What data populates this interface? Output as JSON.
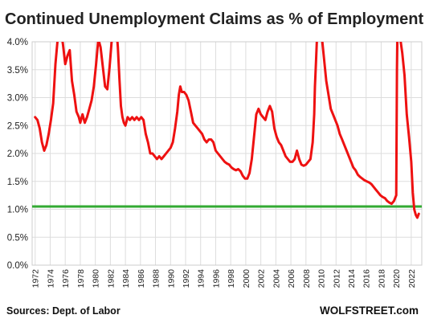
{
  "chart_data": {
    "type": "line",
    "title": "Continued Unemployment Claims as % of Employment",
    "xlabel": "",
    "ylabel": "",
    "xlim": [
      1971.6,
      2023.4
    ],
    "ylim": [
      0,
      4
    ],
    "y_ticks": [
      "0.0%",
      "0.5%",
      "1.0%",
      "1.5%",
      "2.0%",
      "2.5%",
      "3.0%",
      "3.5%",
      "4.0%"
    ],
    "y_tick_values": [
      0,
      0.5,
      1,
      1.5,
      2,
      2.5,
      3,
      3.5,
      4
    ],
    "x_ticks": [
      "1972",
      "1974",
      "1976",
      "1978",
      "1980",
      "1982",
      "1984",
      "1986",
      "1988",
      "1990",
      "1992",
      "1994",
      "1996",
      "1998",
      "2000",
      "2002",
      "2004",
      "2006",
      "2008",
      "2010",
      "2012",
      "2014",
      "2016",
      "2018",
      "2020",
      "2022"
    ],
    "x_tick_values": [
      1972,
      1974,
      1976,
      1978,
      1980,
      1982,
      1984,
      1986,
      1988,
      1990,
      1992,
      1994,
      1996,
      1998,
      2000,
      2002,
      2004,
      2006,
      2008,
      2010,
      2012,
      2014,
      2016,
      2018,
      2020,
      2022
    ],
    "grid": true,
    "colors": {
      "series": "#ee1111",
      "reference": "#33aa33",
      "grid": "#dddddd"
    },
    "series": [
      {
        "x": [
          1972.0,
          1972.3,
          1972.6,
          1972.9,
          1973.2,
          1973.5,
          1973.8,
          1974.1,
          1974.4,
          1974.7,
          1975.0,
          1975.2,
          1975.45,
          1975.7,
          1976.0,
          1976.3,
          1976.6,
          1976.9,
          1977.2,
          1977.5,
          1977.8,
          1978.0,
          1978.3,
          1978.6,
          1978.9,
          1979.2,
          1979.5,
          1979.8,
          1980.1,
          1980.4,
          1980.7,
          1981.0,
          1981.3,
          1981.6,
          1981.9,
          1982.2,
          1982.5,
          1982.8,
          1983.0,
          1983.2,
          1983.4,
          1983.6,
          1983.8,
          1984.0,
          1984.3,
          1984.6,
          1984.9,
          1985.2,
          1985.5,
          1985.8,
          1986.1,
          1986.4,
          1986.7,
          1987.0,
          1987.3,
          1987.6,
          1987.9,
          1988.2,
          1988.5,
          1988.8,
          1989.1,
          1989.4,
          1989.7,
          1990.0,
          1990.3,
          1990.6,
          1990.9,
          1991.1,
          1991.3,
          1991.5,
          1991.8,
          1992.1,
          1992.4,
          1992.7,
          1993.0,
          1993.3,
          1993.6,
          1993.9,
          1994.2,
          1994.5,
          1994.8,
          1995.1,
          1995.4,
          1995.7,
          1996.0,
          1996.3,
          1996.6,
          1996.9,
          1997.2,
          1997.5,
          1997.8,
          1998.1,
          1998.4,
          1998.7,
          1999.0,
          1999.3,
          1999.6,
          1999.9,
          2000.2,
          2000.5,
          2000.8,
          2001.1,
          2001.4,
          2001.7,
          2002.0,
          2002.3,
          2002.6,
          2002.9,
          2003.2,
          2003.5,
          2003.8,
          2004.1,
          2004.4,
          2004.7,
          2005.0,
          2005.3,
          2005.6,
          2005.9,
          2006.2,
          2006.5,
          2006.8,
          2007.1,
          2007.4,
          2007.7,
          2008.0,
          2008.3,
          2008.6,
          2008.9,
          2009.1,
          2009.2,
          2009.35,
          2009.5,
          2009.8,
          2010.1,
          2010.4,
          2010.7,
          2011.0,
          2011.3,
          2011.6,
          2011.9,
          2012.2,
          2012.5,
          2012.8,
          2013.1,
          2013.4,
          2013.7,
          2014.0,
          2014.3,
          2014.6,
          2014.9,
          2015.2,
          2015.5,
          2015.8,
          2016.1,
          2016.4,
          2016.7,
          2017.0,
          2017.3,
          2017.6,
          2017.9,
          2018.2,
          2018.5,
          2018.8,
          2019.1,
          2019.4,
          2019.7,
          2020.0,
          2020.1,
          2020.2,
          2020.3,
          2020.5,
          2020.8,
          2021.1,
          2021.4,
          2021.7,
          2022.0,
          2022.2,
          2022.4,
          2022.6,
          2022.8,
          2023.0
        ],
        "values": [
          2.65,
          2.6,
          2.45,
          2.2,
          2.05,
          2.15,
          2.35,
          2.6,
          2.9,
          3.6,
          4.05,
          4.7,
          4.2,
          3.95,
          3.6,
          3.75,
          3.85,
          3.3,
          3.05,
          2.75,
          2.65,
          2.55,
          2.7,
          2.55,
          2.65,
          2.8,
          2.95,
          3.2,
          3.6,
          4.05,
          3.9,
          3.55,
          3.2,
          3.15,
          3.55,
          4.05,
          4.35,
          4.25,
          3.9,
          3.35,
          2.85,
          2.65,
          2.55,
          2.5,
          2.65,
          2.6,
          2.65,
          2.6,
          2.65,
          2.6,
          2.65,
          2.6,
          2.35,
          2.2,
          2.0,
          2.0,
          1.95,
          1.9,
          1.95,
          1.9,
          1.95,
          2.0,
          2.05,
          2.1,
          2.2,
          2.45,
          2.75,
          3.05,
          3.2,
          3.1,
          3.1,
          3.05,
          2.95,
          2.75,
          2.55,
          2.5,
          2.45,
          2.4,
          2.35,
          2.25,
          2.2,
          2.25,
          2.25,
          2.2,
          2.05,
          2.0,
          1.95,
          1.9,
          1.85,
          1.82,
          1.8,
          1.75,
          1.72,
          1.7,
          1.72,
          1.68,
          1.6,
          1.55,
          1.55,
          1.65,
          1.9,
          2.3,
          2.7,
          2.8,
          2.7,
          2.65,
          2.6,
          2.75,
          2.85,
          2.75,
          2.45,
          2.3,
          2.2,
          2.15,
          2.05,
          1.95,
          1.9,
          1.85,
          1.85,
          1.9,
          2.05,
          1.9,
          1.8,
          1.78,
          1.8,
          1.85,
          1.9,
          2.2,
          2.7,
          3.2,
          3.7,
          4.2,
          4.3,
          4.1,
          3.7,
          3.3,
          3.05,
          2.8,
          2.7,
          2.6,
          2.5,
          2.35,
          2.25,
          2.15,
          2.05,
          1.95,
          1.85,
          1.75,
          1.7,
          1.62,
          1.58,
          1.55,
          1.52,
          1.5,
          1.48,
          1.45,
          1.4,
          1.35,
          1.3,
          1.25,
          1.22,
          1.2,
          1.15,
          1.12,
          1.1,
          1.15,
          1.25,
          3.5,
          4.5,
          4.3,
          4.1,
          3.8,
          3.4,
          2.7,
          2.3,
          1.85,
          1.3,
          1.0,
          0.9,
          0.85,
          0.92
        ]
      }
    ],
    "reference_line": {
      "y": 1.05,
      "color": "#33aa33"
    }
  },
  "footer": {
    "source": "Sources: Dept. of Labor",
    "brand": "WOLFSTREET.com"
  }
}
